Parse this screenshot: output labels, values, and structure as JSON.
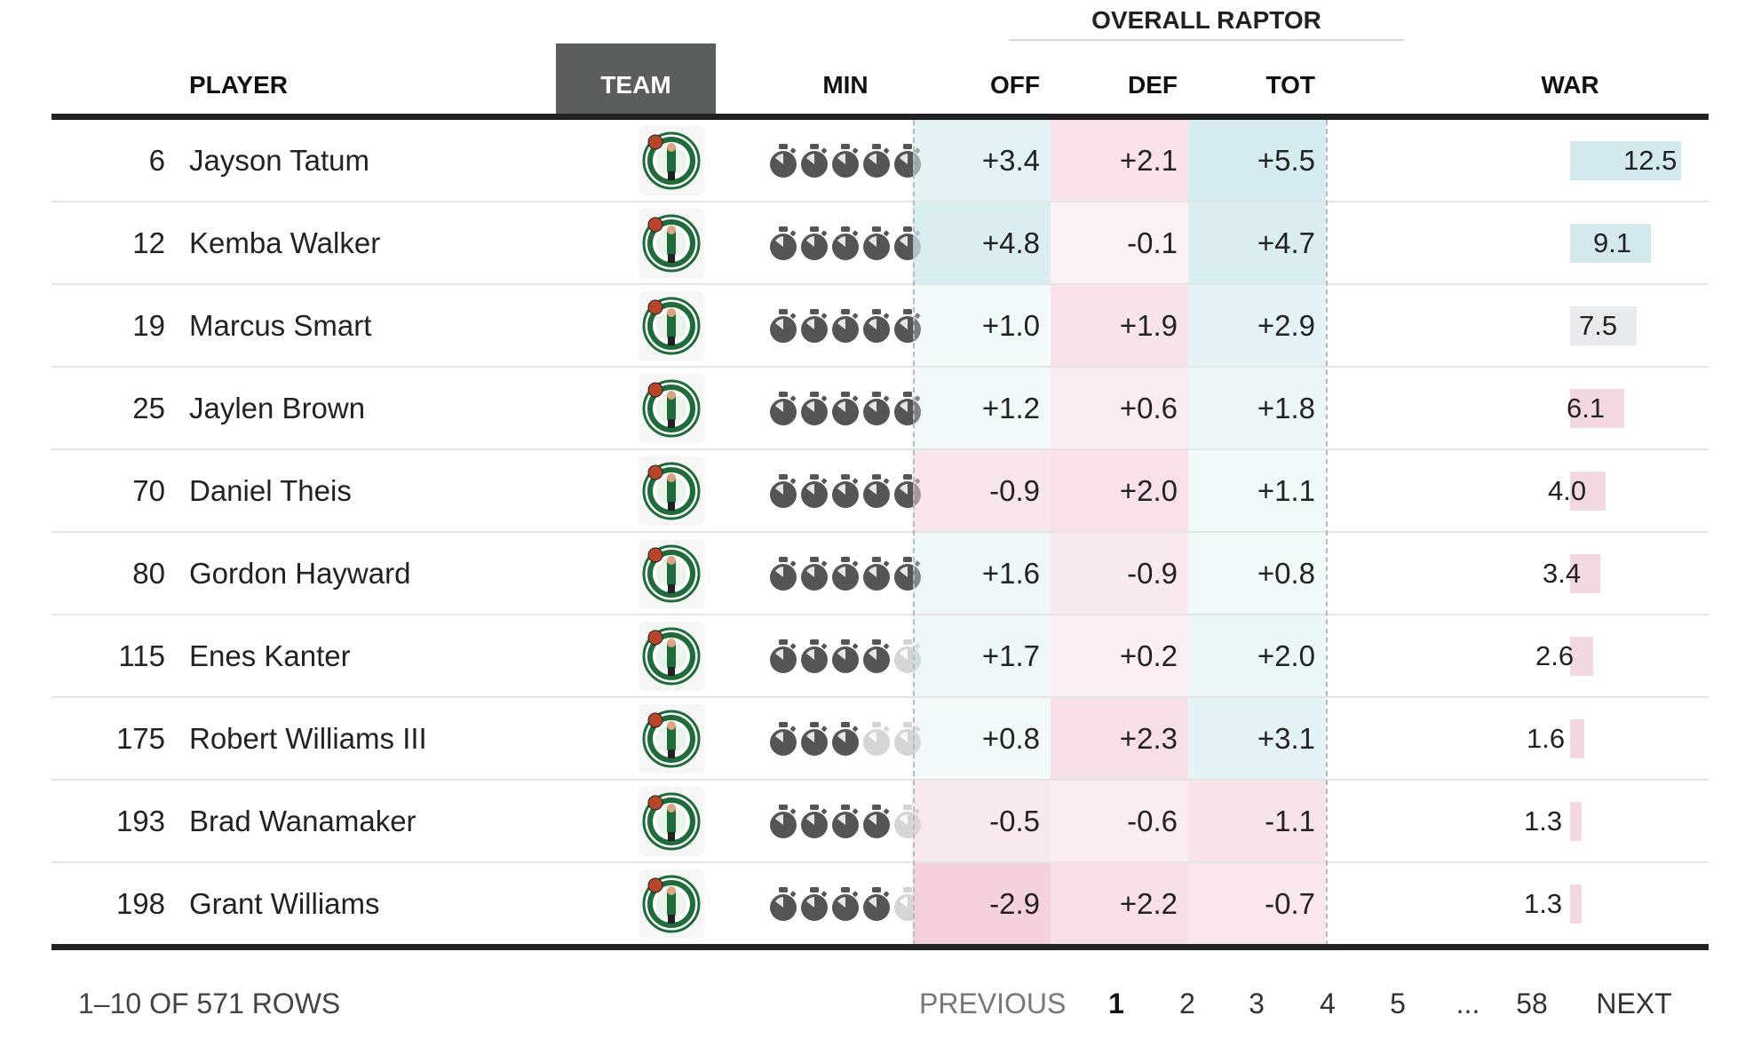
{
  "group_header": "OVERALL RAPTOR",
  "columns": {
    "player": "PLAYER",
    "team": "TEAM",
    "min": "MIN",
    "off": "OFF",
    "def": "DEF",
    "tot": "TOT",
    "war": "WAR"
  },
  "war_max": 12.5,
  "rows": [
    {
      "rank": "6",
      "name": "Jayson Tatum",
      "minutes_filled": 5,
      "off": "+3.4",
      "def": "+2.1",
      "tot": "+5.5",
      "war": "12.5",
      "war_value": 12.5
    },
    {
      "rank": "12",
      "name": "Kemba Walker",
      "minutes_filled": 5,
      "off": "+4.8",
      "def": "-0.1",
      "tot": "+4.7",
      "war": "9.1",
      "war_value": 9.1
    },
    {
      "rank": "19",
      "name": "Marcus Smart",
      "minutes_filled": 5,
      "off": "+1.0",
      "def": "+1.9",
      "tot": "+2.9",
      "war": "7.5",
      "war_value": 7.5
    },
    {
      "rank": "25",
      "name": "Jaylen Brown",
      "minutes_filled": 5,
      "off": "+1.2",
      "def": "+0.6",
      "tot": "+1.8",
      "war": "6.1",
      "war_value": 6.1
    },
    {
      "rank": "70",
      "name": "Daniel Theis",
      "minutes_filled": 5,
      "off": "-0.9",
      "def": "+2.0",
      "tot": "+1.1",
      "war": "4.0",
      "war_value": 4.0
    },
    {
      "rank": "80",
      "name": "Gordon Hayward",
      "minutes_filled": 5,
      "off": "+1.6",
      "def": "-0.9",
      "tot": "+0.8",
      "war": "3.4",
      "war_value": 3.4
    },
    {
      "rank": "115",
      "name": "Enes Kanter",
      "minutes_filled": 4,
      "off": "+1.7",
      "def": "+0.2",
      "tot": "+2.0",
      "war": "2.6",
      "war_value": 2.6
    },
    {
      "rank": "175",
      "name": "Robert Williams III",
      "minutes_filled": 3,
      "off": "+0.8",
      "def": "+2.3",
      "tot": "+3.1",
      "war": "1.6",
      "war_value": 1.6
    },
    {
      "rank": "193",
      "name": "Brad Wanamaker",
      "minutes_filled": 4,
      "off": "-0.5",
      "def": "-0.6",
      "tot": "-1.1",
      "war": "1.3",
      "war_value": 1.3
    },
    {
      "rank": "198",
      "name": "Grant Williams",
      "minutes_filled": 4,
      "off": "-2.9",
      "def": "+2.2",
      "tot": "-0.7",
      "war": "1.3",
      "war_value": 1.3
    }
  ],
  "pagination": {
    "count_label": "1–10 OF 571 ROWS",
    "previous": "PREVIOUS",
    "pages": [
      "1",
      "2",
      "3",
      "4",
      "5",
      "...",
      "58"
    ],
    "current_page": "1",
    "next": "NEXT"
  },
  "colors": {
    "positive_strong": "#cfe9ee",
    "negative_strong": "#f4d3de",
    "team_header_bg": "#5a5e5e",
    "stopwatch_filled": "#555555",
    "stopwatch_empty": "#d5d5d5"
  },
  "icons": {
    "team_logo": "boston-celtics-logo-icon",
    "minutes": "stopwatch-icon"
  }
}
